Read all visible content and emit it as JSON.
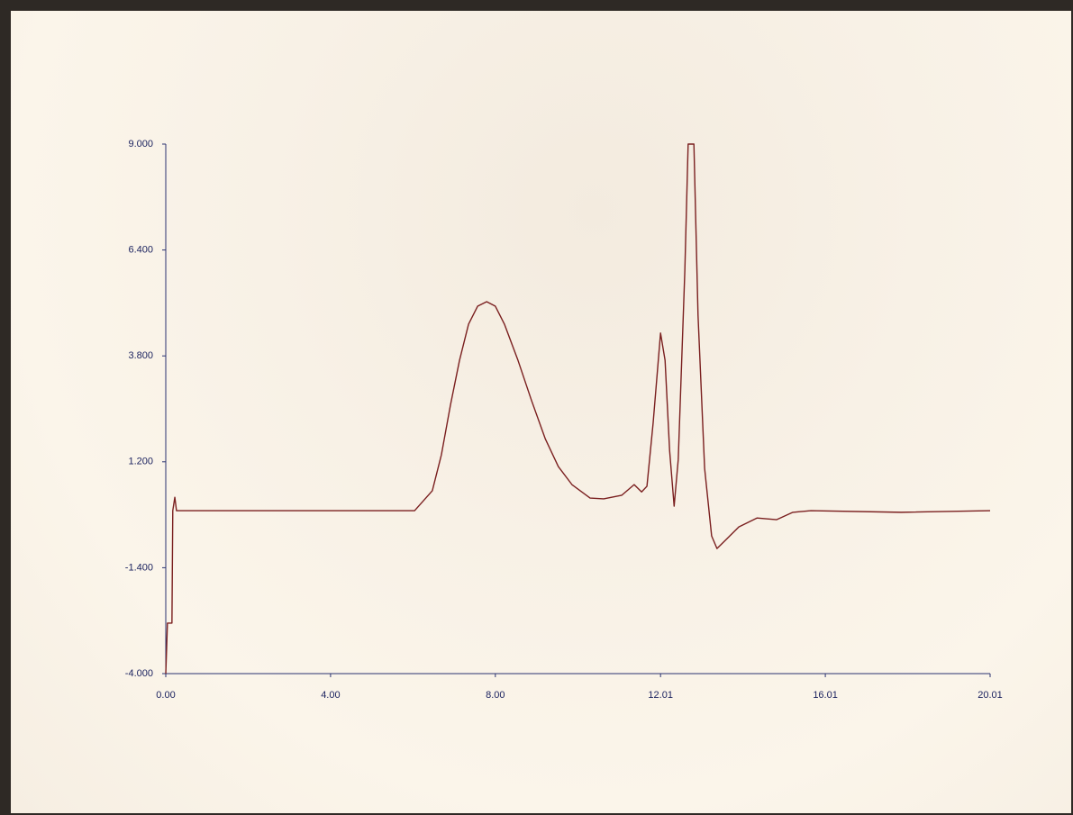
{
  "chart_data": {
    "type": "line",
    "x": [
      0,
      0.02,
      0.04,
      0.15,
      0.17,
      0.22,
      0.26,
      6.04,
      6.47,
      6.69,
      6.91,
      7.13,
      7.35,
      7.57,
      7.79,
      8.0,
      8.22,
      8.55,
      8.88,
      9.21,
      9.53,
      9.86,
      10.3,
      10.63,
      11.07,
      11.37,
      11.55,
      11.68,
      11.83,
      12.01,
      12.12,
      12.23,
      12.34,
      12.44,
      12.6,
      12.68,
      12.82,
      12.92,
      13.08,
      13.25,
      13.38,
      13.58,
      13.91,
      14.35,
      14.83,
      15.22,
      15.66,
      17.85,
      20.01
    ],
    "series": [
      {
        "color": "#7a1f1f",
        "values": [
          -4.0,
          -3.4,
          -2.76,
          -2.76,
          0.0,
          0.33,
          0.0,
          0.0,
          0.49,
          1.37,
          2.59,
          3.69,
          4.58,
          5.02,
          5.13,
          5.02,
          4.58,
          3.69,
          2.7,
          1.77,
          1.08,
          0.64,
          0.31,
          0.29,
          0.38,
          0.64,
          0.46,
          0.6,
          2.15,
          4.36,
          3.69,
          1.48,
          0.11,
          1.26,
          5.9,
          9.0,
          9.0,
          4.8,
          1.04,
          -0.62,
          -0.93,
          -0.73,
          -0.4,
          -0.18,
          -0.22,
          -0.04,
          0.0,
          -0.04,
          0.0
        ]
      }
    ],
    "xlim": [
      0,
      20.01
    ],
    "ylim": [
      -4.0,
      9.0
    ],
    "xticks": [
      {
        "value": 0,
        "label": "0.00"
      },
      {
        "value": 4,
        "label": "4.00"
      },
      {
        "value": 8,
        "label": "8.00"
      },
      {
        "value": 12.01,
        "label": "12.01"
      },
      {
        "value": 16.01,
        "label": "16.01"
      },
      {
        "value": 20.01,
        "label": "20.01"
      }
    ],
    "yticks": [
      {
        "value": 9,
        "label": "9.000"
      },
      {
        "value": 6.4,
        "label": "6.400"
      },
      {
        "value": 3.8,
        "label": "3.800"
      },
      {
        "value": 1.2,
        "label": "1.200"
      },
      {
        "value": -1.4,
        "label": "-1.400"
      },
      {
        "value": -4,
        "label": "-4.000"
      }
    ]
  }
}
